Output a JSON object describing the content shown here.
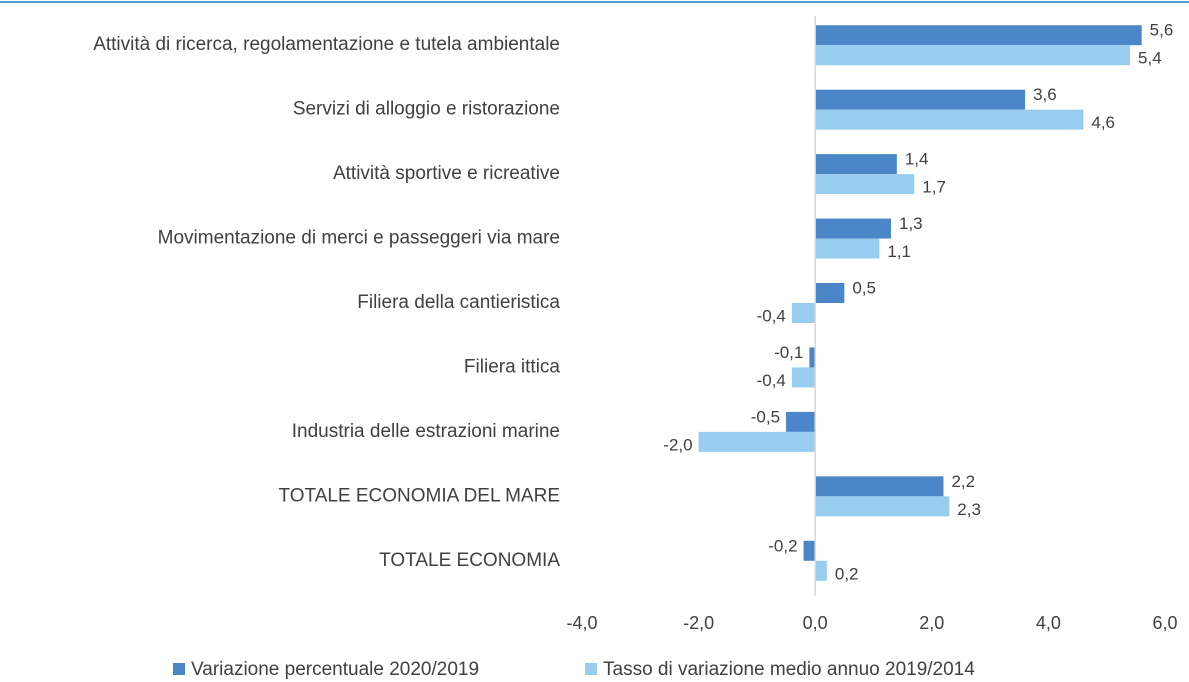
{
  "chart_data": {
    "type": "hbar",
    "categories": [
      "Attività di ricerca, regolamentazione e tutela ambientale",
      "Servizi di alloggio e ristorazione",
      "Attività sportive e ricreative",
      "Movimentazione di merci e passeggeri via mare",
      "Filiera della cantieristica",
      "Filiera ittica",
      "Industria delle estrazioni marine",
      "TOTALE ECONOMIA DEL MARE",
      "TOTALE ECONOMIA"
    ],
    "series": [
      {
        "name": "Variazione percentuale 2020/2019",
        "color": "#4a86c8",
        "values": [
          5.6,
          3.6,
          1.4,
          1.3,
          0.5,
          -0.1,
          -0.5,
          2.2,
          -0.2
        ],
        "value_labels": [
          "5,6",
          "3,6",
          "1,4",
          "1,3",
          "0,5",
          "-0,1",
          "-0,5",
          "2,2",
          "-0,2"
        ]
      },
      {
        "name": "Tasso di variazione medio annuo 2019/2014",
        "color": "#99cdf0",
        "values": [
          5.4,
          4.6,
          1.7,
          1.1,
          -0.4,
          -0.4,
          -2.0,
          2.3,
          0.2
        ],
        "value_labels": [
          "5,4",
          "4,6",
          "1,7",
          "1,1",
          "-0,4",
          "-0,4",
          "-2,0",
          "2,3",
          "0,2"
        ]
      }
    ],
    "xlim": [
      -4,
      6
    ],
    "xticks": [
      {
        "value": -4,
        "label": "-4,0"
      },
      {
        "value": -2,
        "label": "-2,0"
      },
      {
        "value": 0,
        "label": "0,0"
      },
      {
        "value": 2,
        "label": "2,0"
      },
      {
        "value": 4,
        "label": "4,0"
      },
      {
        "value": 6,
        "label": "6,0"
      }
    ],
    "legend": "bottom"
  }
}
